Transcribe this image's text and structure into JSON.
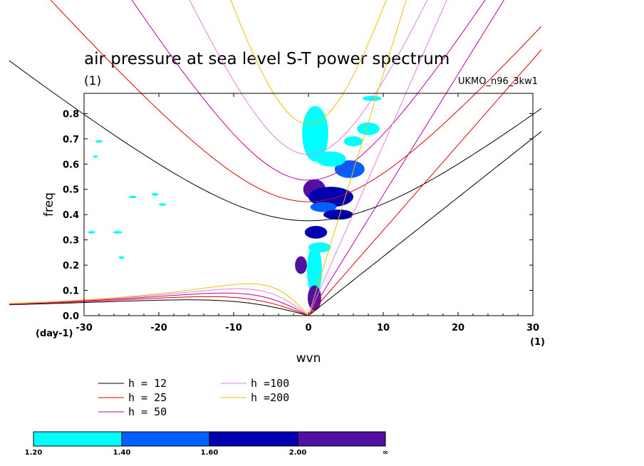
{
  "chart_data": {
    "type": "contour",
    "title": "air pressure at sea level S-T power spectrum",
    "subtitle_left": "(1)",
    "subtitle_right": "UKMO_n96_3kw1",
    "xlabel": "wvn",
    "ylabel": "freq",
    "x_unit": "(1)",
    "y_unit": "(day-1)",
    "xlim": [
      -30,
      30
    ],
    "ylim": [
      0,
      0.88
    ],
    "xticks": [
      -30,
      -20,
      -10,
      0,
      10,
      20,
      30
    ],
    "xtick_labels": [
      "-30",
      "-20",
      "-10",
      "0",
      "10",
      "20",
      "30"
    ],
    "yticks": [
      0,
      0.1,
      0.2,
      0.3,
      0.4,
      0.5,
      0.6,
      0.7,
      0.8
    ],
    "ytick_labels": [
      "0.0",
      "0.1",
      "0.2",
      "0.3",
      "0.4",
      "0.5",
      "0.6",
      "0.7",
      "0.8"
    ],
    "dispersion_curves": [
      {
        "label": "h = 12",
        "h": 12,
        "color": "#000000"
      },
      {
        "label": "h = 25",
        "h": 25,
        "color": "#e00000"
      },
      {
        "label": "h = 50",
        "h": 50,
        "color": "#c000a0"
      },
      {
        "label": "h =100",
        "h": 100,
        "color": "#e080e0"
      },
      {
        "label": "h =200",
        "h": 200,
        "color": "#f0c000"
      }
    ],
    "colorbar": {
      "levels": [
        "1.20",
        "1.40",
        "1.60",
        "2.00",
        "∞"
      ],
      "colors": [
        "#00ffff",
        "#0060ff",
        "#0000b0",
        "#5010a0"
      ]
    },
    "contour_blobs": [
      {
        "x": 0.9,
        "y": 0.77,
        "w": 2.0,
        "h": 0.1,
        "level": 3
      },
      {
        "x": 0.9,
        "y": 0.72,
        "w": 3.5,
        "h": 0.22,
        "level": 0
      },
      {
        "x": 0.8,
        "y": 0.5,
        "w": 3.0,
        "h": 0.08,
        "level": 3
      },
      {
        "x": 3.0,
        "y": 0.47,
        "w": 6.0,
        "h": 0.08,
        "level": 2
      },
      {
        "x": 2.0,
        "y": 0.43,
        "w": 3.5,
        "h": 0.04,
        "level": 1
      },
      {
        "x": 4.0,
        "y": 0.4,
        "w": 4.0,
        "h": 0.04,
        "level": 2
      },
      {
        "x": 5.5,
        "y": 0.58,
        "w": 4.0,
        "h": 0.07,
        "level": 1
      },
      {
        "x": 3.0,
        "y": 0.62,
        "w": 4.0,
        "h": 0.06,
        "level": 0
      },
      {
        "x": 1.0,
        "y": 0.33,
        "w": 3.0,
        "h": 0.05,
        "level": 2
      },
      {
        "x": 1.5,
        "y": 0.27,
        "w": 3.0,
        "h": 0.04,
        "level": 0
      },
      {
        "x": 0.8,
        "y": 0.18,
        "w": 2.0,
        "h": 0.2,
        "level": 0
      },
      {
        "x": -1.0,
        "y": 0.2,
        "w": 1.6,
        "h": 0.07,
        "level": 3
      },
      {
        "x": 0.8,
        "y": 0.07,
        "w": 1.8,
        "h": 0.1,
        "level": 3
      },
      {
        "x": 8.5,
        "y": 0.86,
        "w": 2.5,
        "h": 0.02,
        "level": 0
      },
      {
        "x": 8.0,
        "y": 0.74,
        "w": 3.0,
        "h": 0.05,
        "level": 0
      },
      {
        "x": 6.0,
        "y": 0.69,
        "w": 2.5,
        "h": 0.04,
        "level": 0
      },
      {
        "x": -28.0,
        "y": 0.69,
        "w": 1.0,
        "h": 0.01,
        "level": 0
      },
      {
        "x": -29.0,
        "y": 0.33,
        "w": 1.0,
        "h": 0.01,
        "level": 0
      },
      {
        "x": -25.5,
        "y": 0.33,
        "w": 1.2,
        "h": 0.01,
        "level": 0
      },
      {
        "x": -23.5,
        "y": 0.47,
        "w": 1.0,
        "h": 0.01,
        "level": 0
      },
      {
        "x": -20.5,
        "y": 0.48,
        "w": 1.0,
        "h": 0.01,
        "level": 0
      },
      {
        "x": -19.5,
        "y": 0.44,
        "w": 1.0,
        "h": 0.01,
        "level": 0
      },
      {
        "x": -28.5,
        "y": 0.63,
        "w": 0.6,
        "h": 0.01,
        "level": 0
      },
      {
        "x": -25.0,
        "y": 0.23,
        "w": 0.8,
        "h": 0.01,
        "level": 0
      }
    ]
  }
}
